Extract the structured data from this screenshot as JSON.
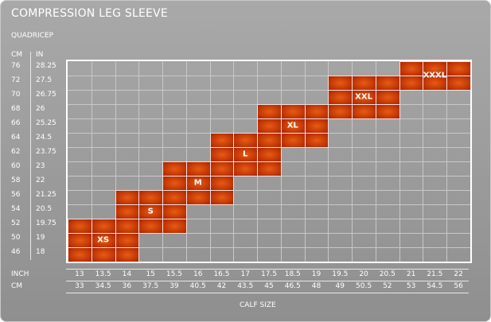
{
  "title": "COMPRESSION LEG SLEEVE",
  "subtitle": "QUADRICEP",
  "axis": {
    "cm_header": "CM",
    "in_header": "IN",
    "cm_values": [
      "76",
      "72",
      "70",
      "68",
      "66",
      "64",
      "62",
      "60",
      "58",
      "56",
      "54",
      "52",
      "50",
      "46"
    ],
    "in_values": [
      "28.25",
      "27.5",
      "26.75",
      "26",
      "25.25",
      "24.5",
      "23.75",
      "23",
      "22",
      "21.25",
      "20.5",
      "19.75",
      "19",
      "18"
    ],
    "inch_label": "INCH",
    "cm_label": "CM",
    "inch_values": [
      "13",
      "13.5",
      "14",
      "15",
      "15.5",
      "16",
      "16.5",
      "17",
      "17.5",
      "18.5",
      "19",
      "19.5",
      "20",
      "20.5",
      "21",
      "21.5",
      "22"
    ],
    "calf_cm_values": [
      "33",
      "34.5",
      "36",
      "37.5",
      "39",
      "40.5",
      "42",
      "43.5",
      "45",
      "46.5",
      "48",
      "49",
      "50.5",
      "52",
      "53",
      "54.5",
      "56"
    ],
    "calf_label": "CALF SIZE"
  },
  "sizes": [
    {
      "label": "XS",
      "col_start": 0,
      "col_end": 3,
      "row_start": 11,
      "row_end": 14
    },
    {
      "label": "S",
      "col_start": 2,
      "col_end": 5,
      "row_start": 9,
      "row_end": 12
    },
    {
      "label": "M",
      "col_start": 4,
      "col_end": 7,
      "row_start": 7,
      "row_end": 10
    },
    {
      "label": "L",
      "col_start": 6,
      "col_end": 9,
      "row_start": 5,
      "row_end": 8
    },
    {
      "label": "XL",
      "col_start": 8,
      "col_end": 11,
      "row_start": 3,
      "row_end": 6
    },
    {
      "label": "XXL",
      "col_start": 11,
      "col_end": 14,
      "row_start": 1,
      "row_end": 4
    },
    {
      "label": "XXXL",
      "col_start": 14,
      "col_end": 17,
      "row_start": 0,
      "row_end": 2
    }
  ],
  "colors": {
    "panel": "#9d9d9d",
    "cell": "#d04a0a",
    "grid": "#ffffff"
  }
}
